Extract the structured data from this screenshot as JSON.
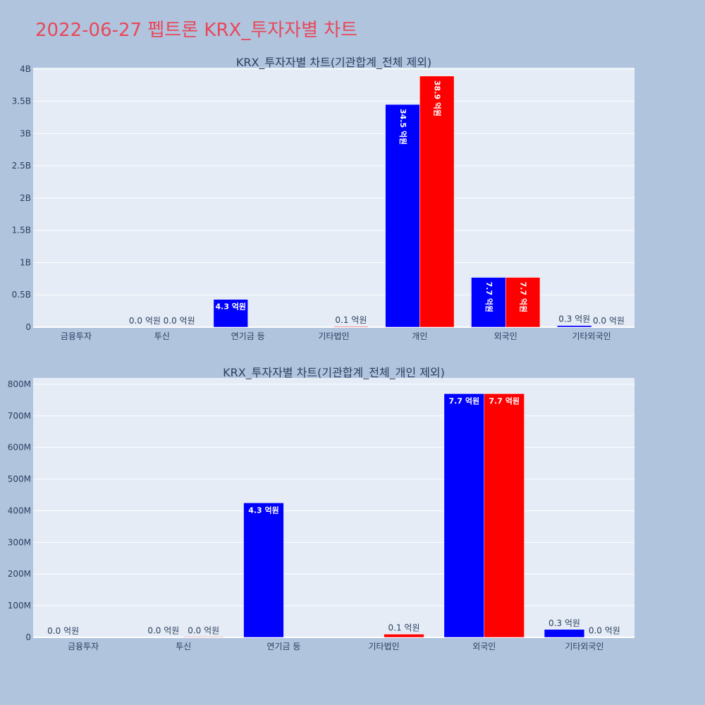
{
  "page": {
    "title": "2022-06-27 펩트론 KRX_투자자별 차트"
  },
  "colors": {
    "buy": "#0000ff",
    "sell": "#ff0000",
    "plot_bg": "#e5ecf6",
    "page_bg": "#b0c4de",
    "title": "#e8485a"
  },
  "chart_data": [
    {
      "type": "bar",
      "title": "KRX_투자자별 차트(기관합계_전체 제외)",
      "categories": [
        "금융투자",
        "투신",
        "연기금 등",
        "기타법인",
        "개인",
        "외국인",
        "기타외국인"
      ],
      "series": [
        {
          "color": "#0000ff",
          "values": [
            0,
            1000000,
            430000000,
            0,
            3450000000,
            770000000,
            25000000
          ],
          "labels": [
            "",
            "0.0 억원",
            "4.3 억원",
            "",
            "34.5 억원",
            "7.7 억원",
            "0.3 억원"
          ]
        },
        {
          "color": "#ff0000",
          "values": [
            0,
            1000000,
            0,
            10000000,
            3890000000,
            770000000,
            1000000
          ],
          "labels": [
            "",
            "0.0 억원",
            "",
            "0.1 억원",
            "38.9 억원",
            "7.7 억원",
            "0.0 억원"
          ]
        }
      ],
      "ylim": [
        0,
        4020000000
      ],
      "yticks": [
        0,
        500000000,
        1000000000,
        1500000000,
        2000000000,
        2500000000,
        3000000000,
        3500000000,
        4000000000
      ],
      "yticklabels": [
        "0",
        "0.5B",
        "1B",
        "1.5B",
        "2B",
        "2.5B",
        "3B",
        "3.5B",
        "4B"
      ],
      "grid": true
    },
    {
      "type": "bar",
      "title": "KRX_투자자별 차트(기관합계_전체_개인 제외)",
      "categories": [
        "금융투자",
        "투신",
        "연기금 등",
        "기타법인",
        "외국인",
        "기타외국인"
      ],
      "series": [
        {
          "color": "#0000ff",
          "values": [
            0,
            1000000,
            425000000,
            0,
            770000000,
            25000000
          ],
          "labels": [
            "0.0 억원",
            "0.0 억원",
            "4.3 억원",
            "",
            "7.7 억원",
            "0.3 억원"
          ]
        },
        {
          "color": "#ff0000",
          "values": [
            0,
            1500000,
            0,
            10000000,
            770000000,
            1000000
          ],
          "labels": [
            "",
            "0.0 억원",
            "",
            "0.1 억원",
            "7.7 억원",
            "0.0 억원"
          ]
        }
      ],
      "ylim": [
        0,
        820000000
      ],
      "yticks": [
        0,
        100000000,
        200000000,
        300000000,
        400000000,
        500000000,
        600000000,
        700000000,
        800000000
      ],
      "yticklabels": [
        "0",
        "100M",
        "200M",
        "300M",
        "400M",
        "500M",
        "600M",
        "700M",
        "800M"
      ],
      "grid": true
    }
  ]
}
